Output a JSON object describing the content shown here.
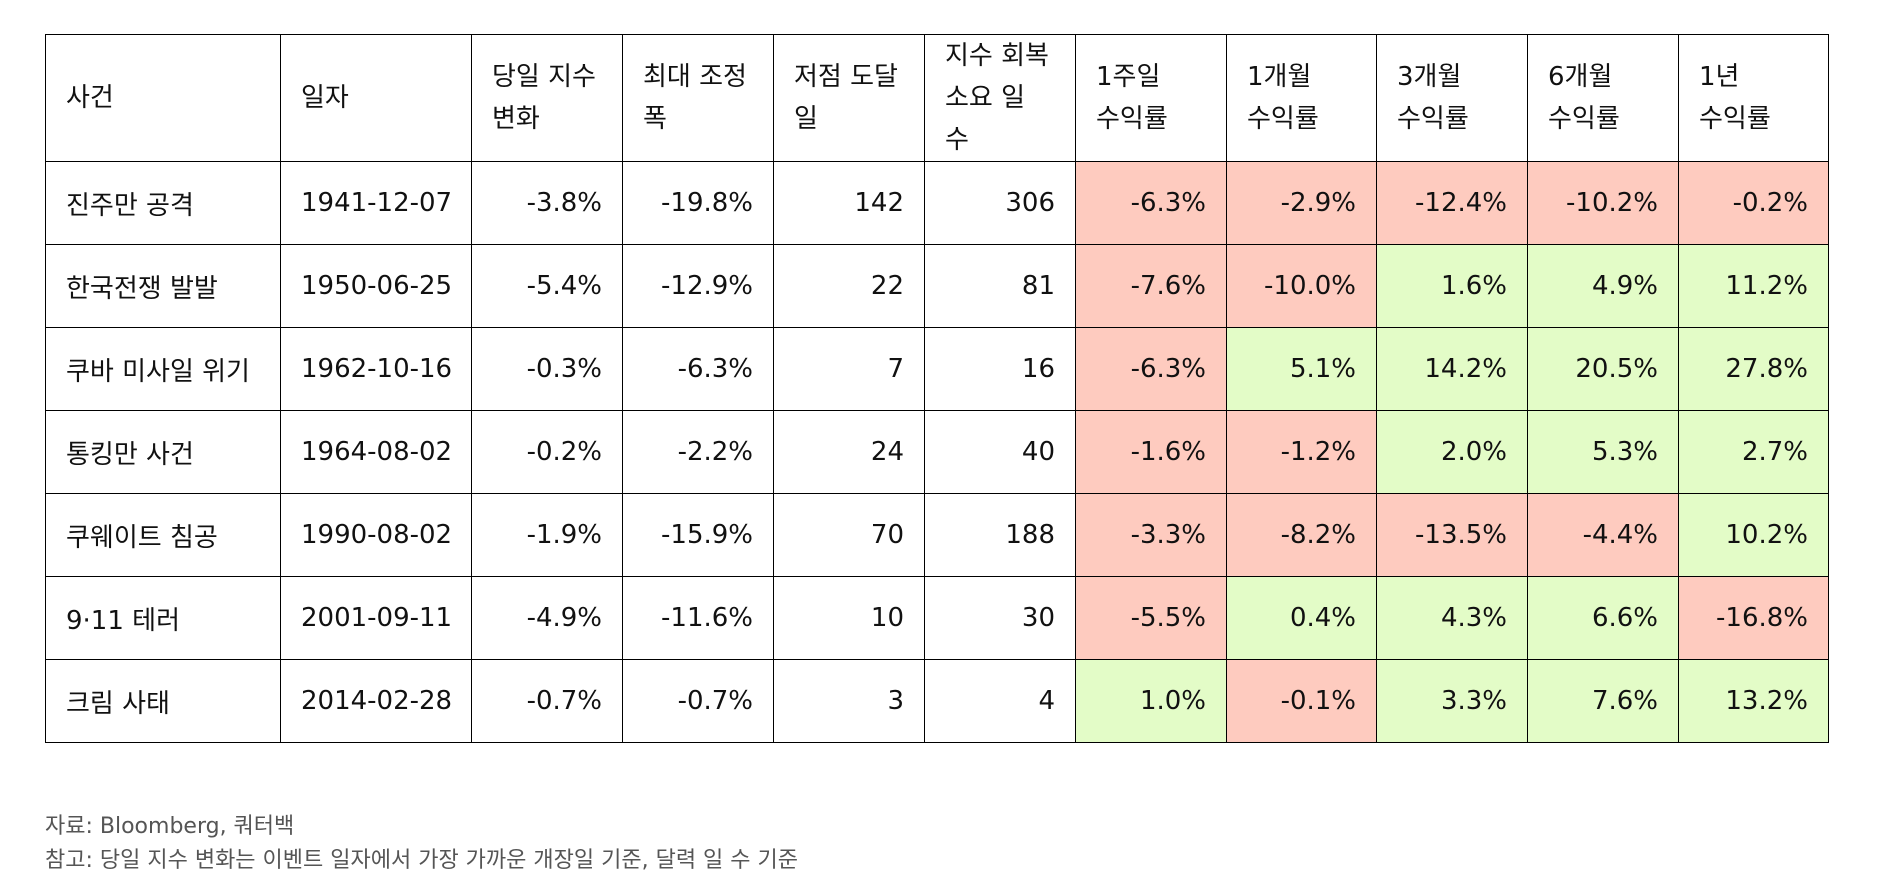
{
  "colors": {
    "negative_cell": "#fecbbf",
    "positive_cell": "#e3fcc7",
    "border": "#000000",
    "note_text": "#555555"
  },
  "table": {
    "headers": [
      [
        "사건"
      ],
      [
        "일자"
      ],
      [
        "당일 지수",
        "변화"
      ],
      [
        "최대 조정",
        "폭"
      ],
      [
        "저점 도달",
        "일"
      ],
      [
        "지수 회복",
        "소요 일 수"
      ],
      [
        "1주일",
        "수익률"
      ],
      [
        "1개월",
        "수익률"
      ],
      [
        "3개월",
        "수익률"
      ],
      [
        "6개월",
        "수익률"
      ],
      [
        "1년",
        "수익률"
      ]
    ],
    "rows": [
      [
        "진주만 공격",
        "1941-12-07",
        "-3.8%",
        "-19.8%",
        "142",
        "306",
        "-6.3%",
        "-2.9%",
        "-12.4%",
        "-10.2%",
        "-0.2%"
      ],
      [
        "한국전쟁 발발",
        "1950-06-25",
        "-5.4%",
        "-12.9%",
        "22",
        "81",
        "-7.6%",
        "-10.0%",
        "1.6%",
        "4.9%",
        "11.2%"
      ],
      [
        "쿠바 미사일 위기",
        "1962-10-16",
        "-0.3%",
        "-6.3%",
        "7",
        "16",
        "-6.3%",
        "5.1%",
        "14.2%",
        "20.5%",
        "27.8%"
      ],
      [
        "통킹만 사건",
        "1964-08-02",
        "-0.2%",
        "-2.2%",
        "24",
        "40",
        "-1.6%",
        "-1.2%",
        "2.0%",
        "5.3%",
        "2.7%"
      ],
      [
        "쿠웨이트 침공",
        "1990-08-02",
        "-1.9%",
        "-15.9%",
        "70",
        "188",
        "-3.3%",
        "-8.2%",
        "-13.5%",
        "-4.4%",
        "10.2%"
      ],
      [
        "9·11 테러",
        "2001-09-11",
        "-4.9%",
        "-11.6%",
        "10",
        "30",
        "-5.5%",
        "0.4%",
        "4.3%",
        "6.6%",
        "-16.8%"
      ],
      [
        "크림 사태",
        "2014-02-28",
        "-0.7%",
        "-0.7%",
        "3",
        "4",
        "1.0%",
        "-0.1%",
        "3.3%",
        "7.6%",
        "13.2%"
      ]
    ]
  },
  "notes": {
    "source": "자료: Bloomberg, 쿼터백",
    "note": "참고: 당일 지수 변화는 이벤트 일자에서 가장 가까운 개장일 기준, 달력 일 수 기준"
  }
}
